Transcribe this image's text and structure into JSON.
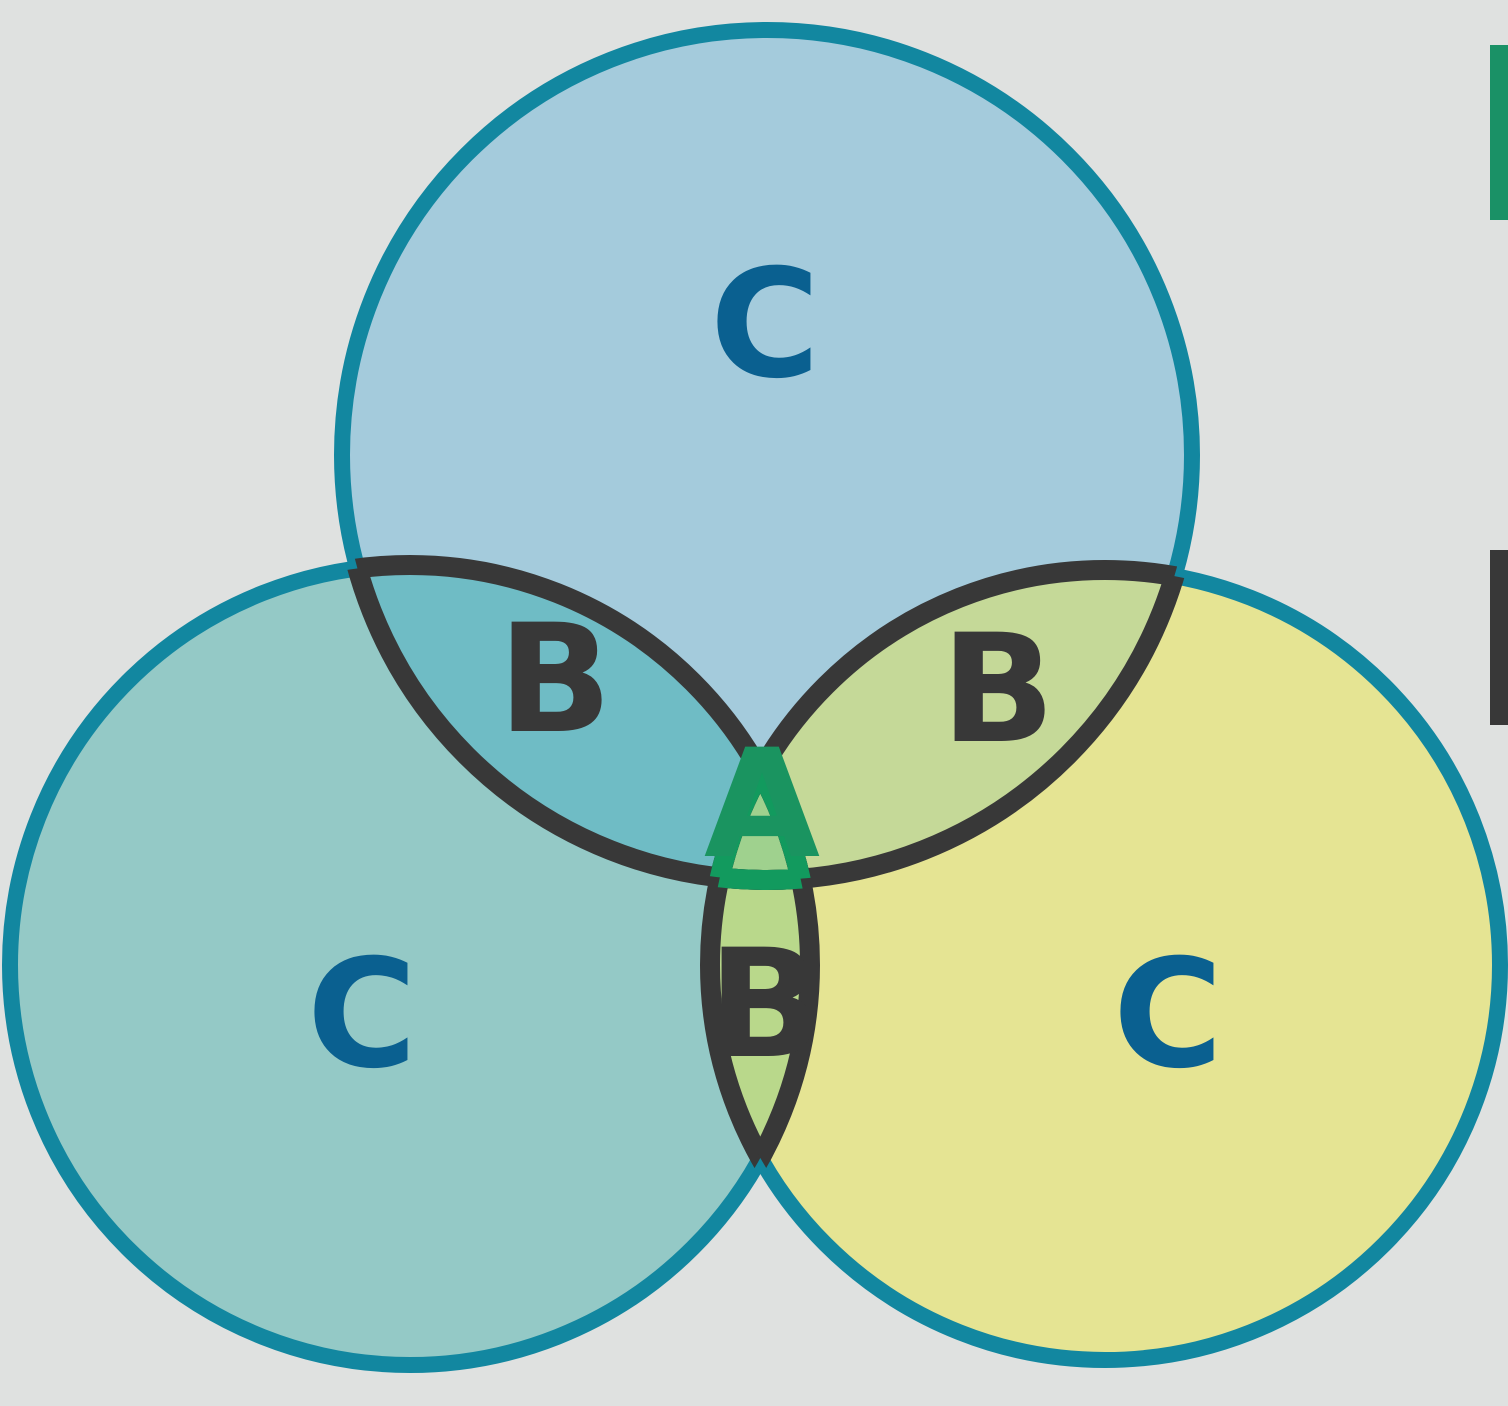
{
  "regions": [
    {
      "label": "C"
    },
    {
      "label": "C"
    },
    {
      "label": "C"
    },
    {
      "label": "B"
    },
    {
      "label": "B"
    },
    {
      "label": "B"
    },
    {
      "label": "A"
    }
  ]
}
